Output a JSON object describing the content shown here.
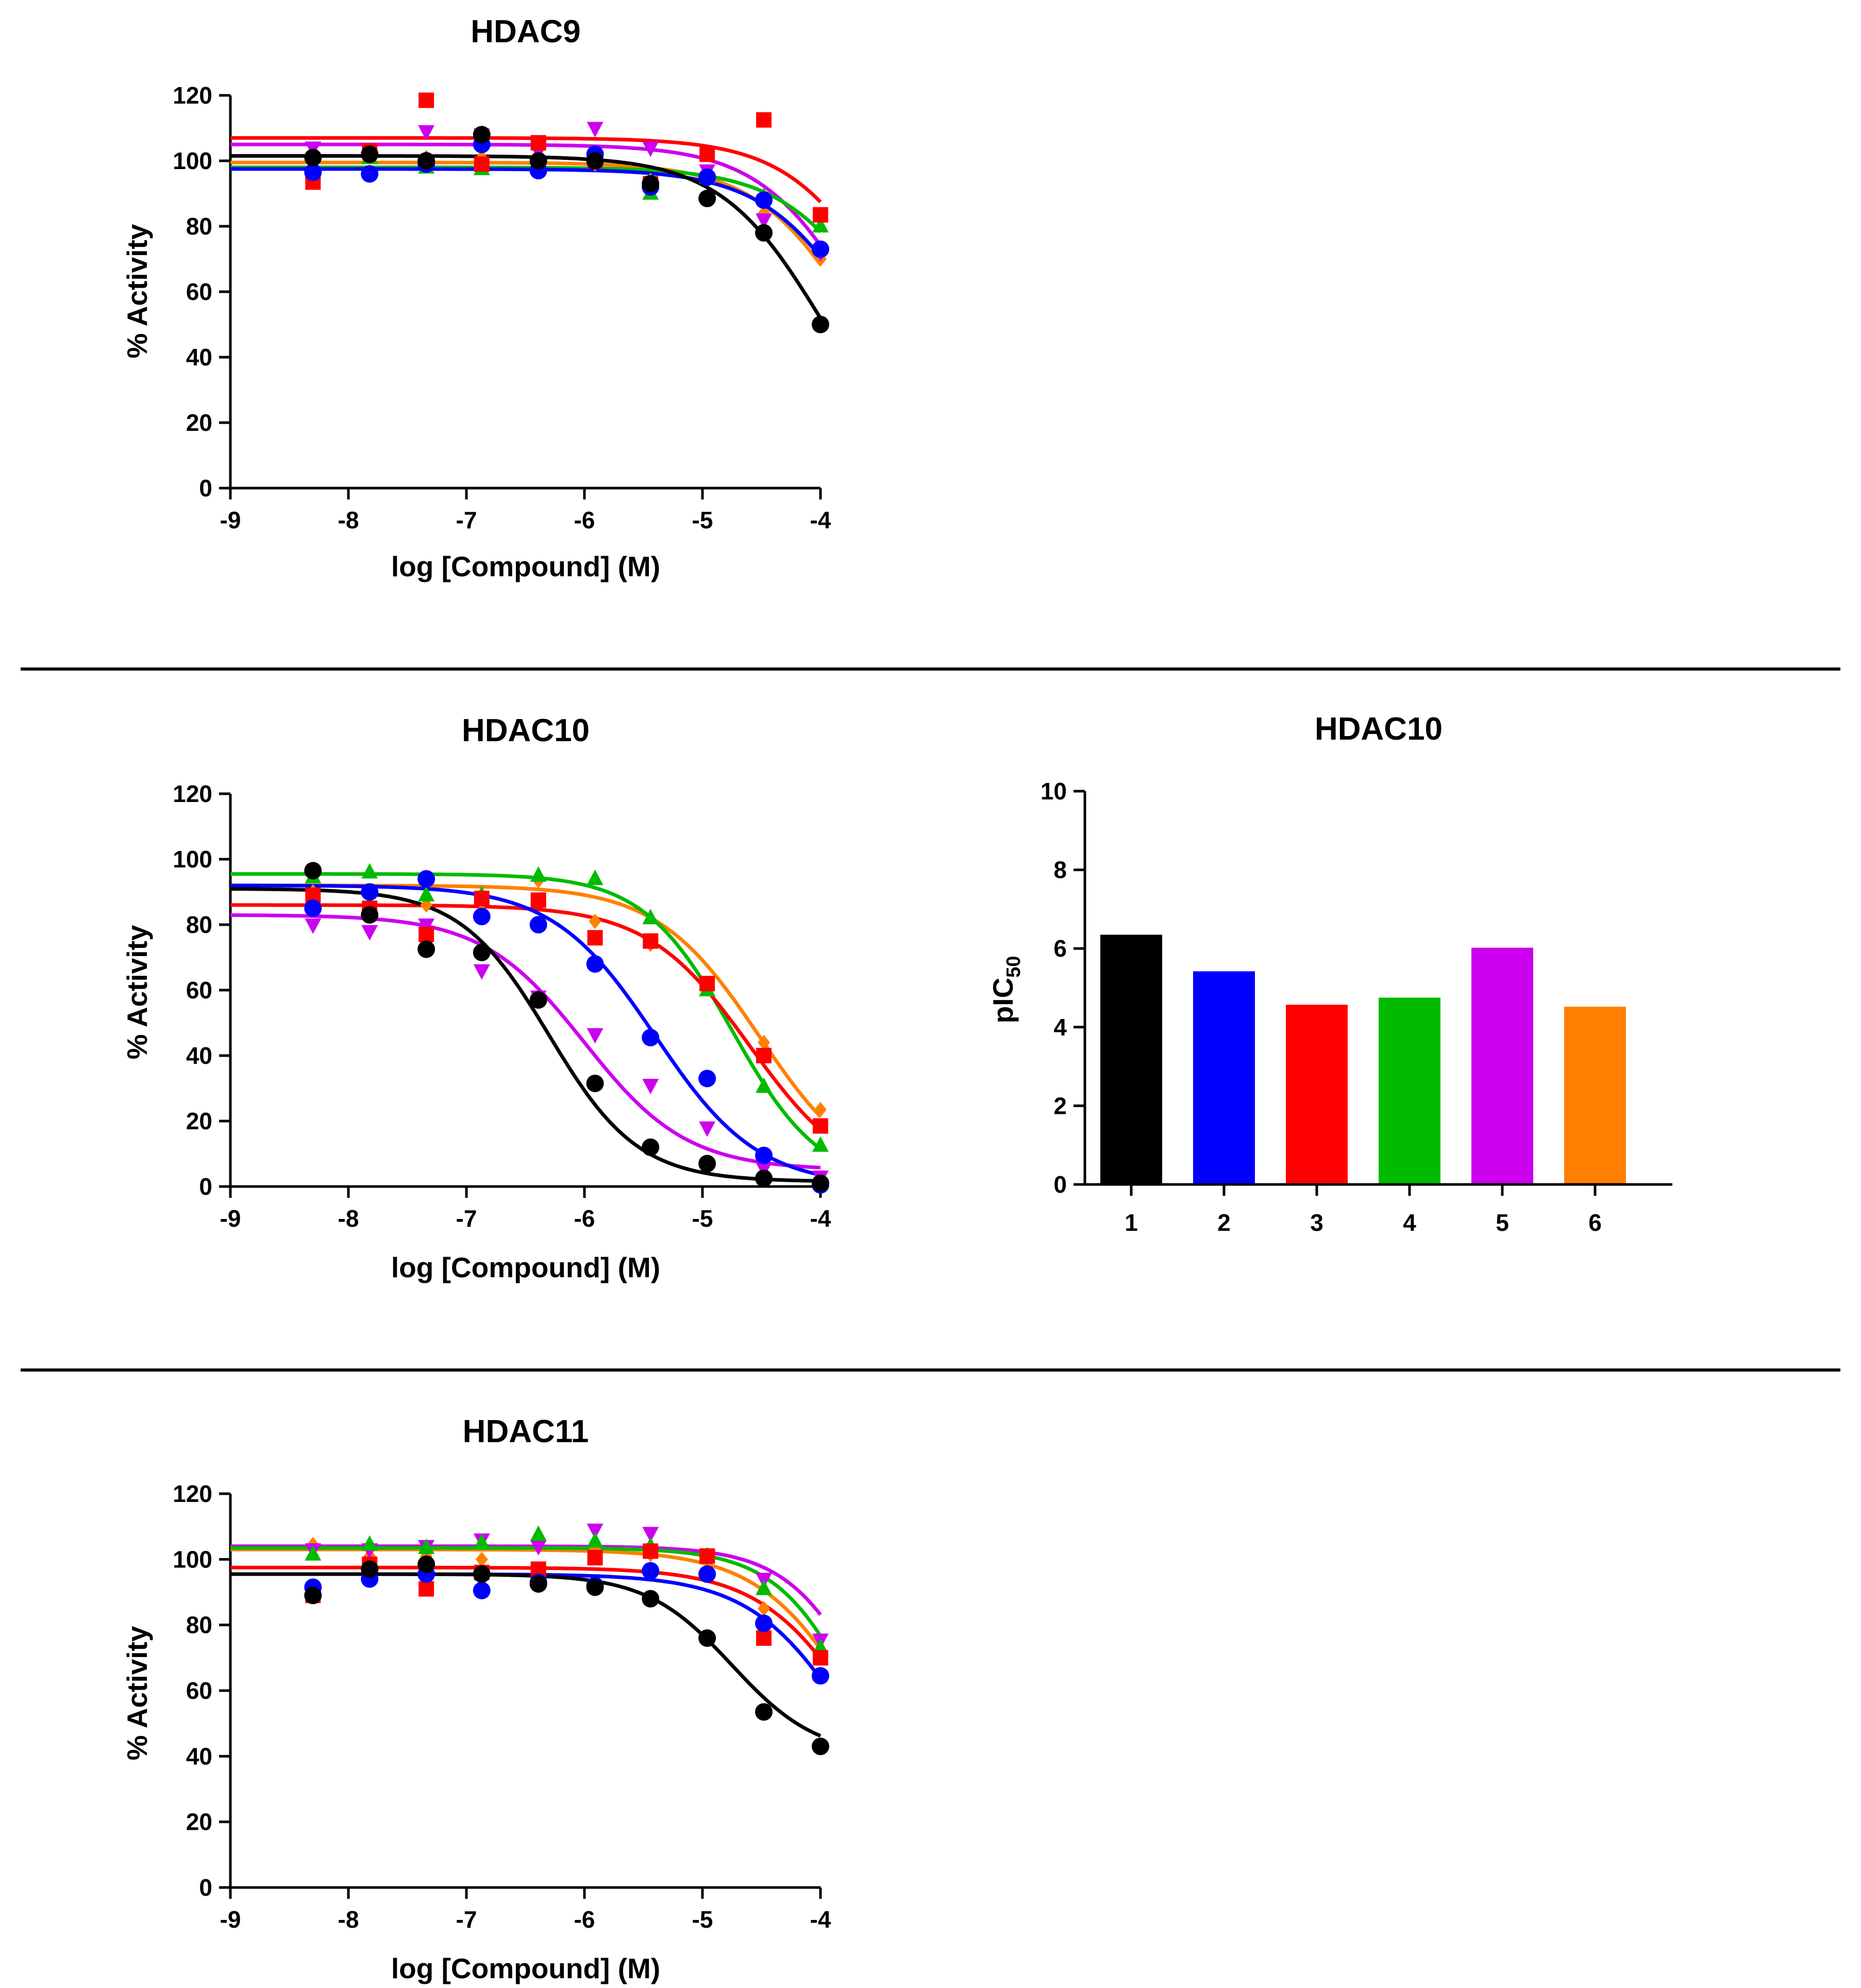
{
  "colors": {
    "black": "#000000",
    "blue": "#0000ff",
    "red": "#ff0000",
    "green": "#00bb00",
    "magenta": "#cc00ee",
    "orange": "#ff8000"
  },
  "chart_data": [
    {
      "id": "hdac9",
      "type": "scatter",
      "title": "HDAC9",
      "xlabel": "log [Compound] (M)",
      "ylabel": "% Activity",
      "xlim": [
        -9,
        -4
      ],
      "ylim": [
        0,
        120
      ],
      "xticks": [
        -9,
        -8,
        -7,
        -6,
        -5,
        -4
      ],
      "yticks": [
        0,
        20,
        40,
        60,
        80,
        100,
        120
      ],
      "x": [
        -8.3,
        -7.82,
        -7.34,
        -6.87,
        -6.39,
        -5.91,
        -5.44,
        -4.96,
        -4.48,
        -4.0
      ],
      "series": [
        {
          "color": "black",
          "marker": "circle",
          "fit": {
            "top": 101.5,
            "bottom": 0,
            "logic50": -3.98,
            "hill": 1.0
          },
          "values": [
            101,
            102,
            100,
            108,
            100,
            100,
            93,
            88.5,
            78,
            50
          ]
        },
        {
          "color": "blue",
          "marker": "circle",
          "fit": {
            "top": 97.5,
            "bottom": 0,
            "logic50": -3.58,
            "hill": 1.0
          },
          "values": [
            96.5,
            96,
            99,
            105,
            97,
            102,
            92,
            95,
            88,
            73
          ]
        },
        {
          "color": "red",
          "marker": "square",
          "fit": {
            "top": 107,
            "bottom": 0,
            "logic50": -3.35,
            "hill": 1.0
          },
          "values": [
            93.5,
            103,
            118.5,
            99,
            105.5,
            100,
            93,
            102,
            112.5,
            83.5
          ]
        },
        {
          "color": "green",
          "marker": "triangle-up",
          "fit": {
            "top": 98,
            "bottom": 0,
            "logic50": -3.4,
            "hill": 1.0
          },
          "values": [
            99,
            101,
            98,
            97.5,
            100,
            100,
            90,
            95,
            89,
            80
          ]
        },
        {
          "color": "magenta",
          "marker": "triangle-down",
          "fit": {
            "top": 105,
            "bottom": 0,
            "logic50": -3.62,
            "hill": 1.0
          },
          "values": [
            104,
            103,
            109,
            108,
            103,
            110,
            104,
            97,
            82,
            72
          ]
        },
        {
          "color": "orange",
          "marker": "diamond",
          "fit": {
            "top": 99.5,
            "bottom": 0,
            "logic50": -3.66,
            "hill": 1.0
          },
          "values": [
            100,
            101,
            101,
            101,
            99,
            99,
            94,
            95,
            84,
            70
          ]
        }
      ]
    },
    {
      "id": "hdac10-curves",
      "type": "scatter",
      "title": "HDAC10",
      "xlabel": "log [Compound] (M)",
      "ylabel": "% Activity",
      "xlim": [
        -9,
        -4
      ],
      "ylim": [
        0,
        120
      ],
      "xticks": [
        -9,
        -8,
        -7,
        -6,
        -5,
        -4
      ],
      "yticks": [
        0,
        20,
        40,
        60,
        80,
        100,
        120
      ],
      "x": [
        -8.3,
        -7.82,
        -7.34,
        -6.87,
        -6.39,
        -5.91,
        -5.44,
        -4.96,
        -4.48,
        -4.0
      ],
      "series": [
        {
          "color": "black",
          "marker": "circle",
          "fit": {
            "top": 91,
            "bottom": 1.5,
            "logic50": -6.3,
            "hill": 1.15
          },
          "values": [
            96.5,
            83,
            72.5,
            71.5,
            57,
            31.5,
            12,
            7,
            2.5,
            1
          ]
        },
        {
          "color": "blue",
          "marker": "circle",
          "fit": {
            "top": 92,
            "bottom": 0,
            "logic50": -5.4,
            "hill": 1.0
          },
          "values": [
            85,
            90,
            94,
            82.5,
            80,
            68,
            45.5,
            33,
            9.5,
            0.5
          ]
        },
        {
          "color": "red",
          "marker": "square",
          "fit": {
            "top": 86,
            "bottom": 0,
            "logic50": -4.6,
            "hill": 1.0
          },
          "values": [
            89,
            85,
            77,
            88,
            87.5,
            76,
            75,
            62,
            40,
            18.5
          ]
        },
        {
          "color": "green",
          "marker": "triangle-up",
          "fit": {
            "top": 95.5,
            "bottom": 0,
            "logic50": -4.75,
            "hill": 1.15
          },
          "values": [
            94.5,
            96,
            89,
            89,
            95,
            94,
            82,
            60,
            30.5,
            12.5
          ]
        },
        {
          "color": "magenta",
          "marker": "triangle-down",
          "fit": {
            "top": 83,
            "bottom": 5,
            "logic50": -6.0,
            "hill": 1.0
          },
          "values": [
            80,
            78,
            80,
            66,
            58,
            46.5,
            31,
            18,
            5.5,
            3
          ]
        },
        {
          "color": "orange",
          "marker": "diamond",
          "fit": {
            "top": 92,
            "bottom": 0,
            "logic50": -4.52,
            "hill": 1.0
          },
          "values": [
            90,
            89.5,
            86,
            84,
            93.5,
            81,
            74,
            61,
            44,
            23.5
          ]
        }
      ]
    },
    {
      "id": "hdac10-bars",
      "type": "bar",
      "title": "HDAC10",
      "xlabel": "",
      "ylabel": "pIC",
      "ylabel_sub": "50",
      "ylim": [
        0,
        10
      ],
      "yticks": [
        0,
        2,
        4,
        6,
        8,
        10
      ],
      "categories": [
        "1",
        "2",
        "3",
        "4",
        "5",
        "6"
      ],
      "values": [
        6.35,
        5.42,
        4.57,
        4.75,
        6.02,
        4.52
      ],
      "bar_colors": [
        "black",
        "blue",
        "red",
        "green",
        "magenta",
        "orange"
      ]
    },
    {
      "id": "hdac11",
      "type": "scatter",
      "title": "HDAC11",
      "xlabel": "log [Compound] (M)",
      "ylabel": "% Activity",
      "xlim": [
        -9,
        -4
      ],
      "ylim": [
        0,
        120
      ],
      "xticks": [
        -9,
        -8,
        -7,
        -6,
        -5,
        -4
      ],
      "yticks": [
        0,
        20,
        40,
        60,
        80,
        100,
        120
      ],
      "x": [
        -8.3,
        -7.82,
        -7.34,
        -6.87,
        -6.39,
        -5.91,
        -5.44,
        -4.96,
        -4.48,
        -4.0
      ],
      "series": [
        {
          "color": "black",
          "marker": "circle",
          "fit": {
            "top": 95.5,
            "bottom": 40,
            "logic50": -4.75,
            "hill": 1.2
          },
          "values": [
            89,
            97,
            98.5,
            95.5,
            92.5,
            91.5,
            88,
            76,
            53.5,
            43
          ]
        },
        {
          "color": "blue",
          "marker": "circle",
          "fit": {
            "top": 95.5,
            "bottom": 0,
            "logic50": -3.7,
            "hill": 1.0
          },
          "values": [
            91.5,
            94,
            95.5,
            90.5,
            93,
            92,
            96.5,
            95.5,
            80.5,
            64.5
          ]
        },
        {
          "color": "red",
          "marker": "square",
          "fit": {
            "top": 97.5,
            "bottom": 0,
            "logic50": -3.6,
            "hill": 1.0
          },
          "values": [
            89,
            98.5,
            91,
            96,
            97,
            100.5,
            102.5,
            101,
            76,
            70
          ]
        },
        {
          "color": "green",
          "marker": "triangle-up",
          "fit": {
            "top": 103.5,
            "bottom": 0,
            "logic50": -3.62,
            "hill": 1.2
          },
          "values": [
            101.5,
            104.5,
            103.5,
            105,
            107.5,
            105.5,
            104,
            101,
            91,
            73
          ]
        },
        {
          "color": "magenta",
          "marker": "triangle-down",
          "fit": {
            "top": 104,
            "bottom": 0,
            "logic50": -3.5,
            "hill": 1.2
          },
          "values": [
            103,
            103,
            104,
            106,
            104,
            109,
            108,
            101,
            94,
            75.5
          ]
        },
        {
          "color": "orange",
          "marker": "diamond",
          "fit": {
            "top": 103,
            "bottom": 0,
            "logic50": -3.62,
            "hill": 1.0
          },
          "values": [
            104.5,
            101,
            101,
            100,
            97,
            103,
            101.5,
            95.5,
            85,
            70
          ]
        }
      ]
    }
  ]
}
